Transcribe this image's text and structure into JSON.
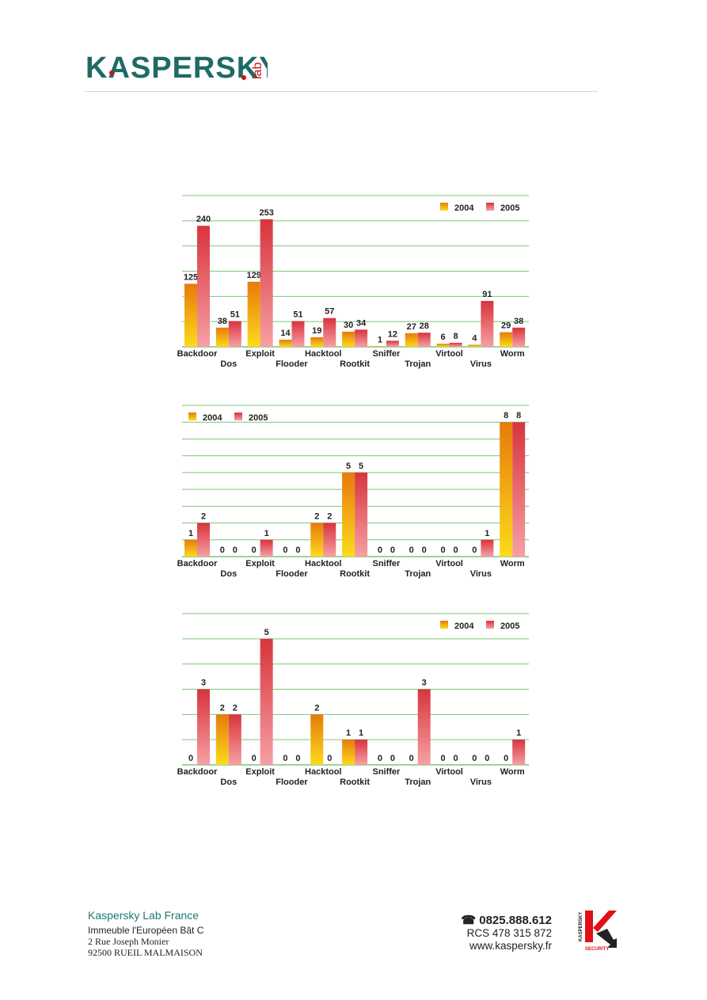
{
  "header": {
    "logo_text": "KASPERSKY lab"
  },
  "chart_data": [
    {
      "type": "bar",
      "title": "",
      "xlabel": "",
      "ylabel": "",
      "ylim": [
        0,
        300
      ],
      "grid": true,
      "legend": "top-right",
      "categories": [
        "Backdoor",
        "Dos",
        "Exploit",
        "Flooder",
        "Hacktool",
        "Rootkit",
        "Sniffer",
        "Trojan",
        "Virtool",
        "Virus",
        "Worm"
      ],
      "series": [
        {
          "name": "2004",
          "values": [
            125,
            38,
            129,
            14,
            19,
            30,
            1,
            27,
            6,
            4,
            29
          ]
        },
        {
          "name": "2005",
          "values": [
            240,
            51,
            253,
            51,
            57,
            34,
            12,
            28,
            8,
            91,
            38
          ]
        }
      ]
    },
    {
      "type": "bar",
      "title": "",
      "xlabel": "",
      "ylabel": "",
      "ylim": [
        0,
        9
      ],
      "grid": true,
      "legend": "top-left",
      "categories": [
        "Backdoor",
        "Dos",
        "Exploit",
        "Flooder",
        "Hacktool",
        "Rootkit",
        "Sniffer",
        "Trojan",
        "Virtool",
        "Virus",
        "Worm"
      ],
      "series": [
        {
          "name": "2004",
          "values": [
            1,
            0,
            0,
            0,
            2,
            5,
            0,
            0,
            0,
            0,
            8
          ]
        },
        {
          "name": "2005",
          "values": [
            2,
            0,
            1,
            0,
            2,
            5,
            0,
            0,
            0,
            1,
            8
          ]
        }
      ]
    },
    {
      "type": "bar",
      "title": "",
      "xlabel": "",
      "ylabel": "",
      "ylim": [
        0,
        6
      ],
      "grid": true,
      "legend": "top-right",
      "categories": [
        "Backdoor",
        "Dos",
        "Exploit",
        "Flooder",
        "Hacktool",
        "Rootkit",
        "Sniffer",
        "Trojan",
        "Virtool",
        "Virus",
        "Worm"
      ],
      "series": [
        {
          "name": "2004",
          "values": [
            0,
            2,
            0,
            0,
            2,
            1,
            0,
            0,
            0,
            0,
            0
          ]
        },
        {
          "name": "2005",
          "values": [
            3,
            2,
            5,
            0,
            0,
            1,
            0,
            3,
            0,
            0,
            1
          ]
        }
      ]
    }
  ],
  "footer": {
    "company": "Kaspersky Lab France",
    "address": [
      "Immeuble l'Européen Bât C",
      "2 Rue Joseph Monier",
      "92500 RUEIL MALMAISON"
    ],
    "phone": "0825.888.612",
    "phone_icon": "telephone-icon",
    "rcs": "RCS 478 315 872",
    "website": "www.kaspersky.fr",
    "security_logo_text": "KASPERSKY SECURITY"
  }
}
